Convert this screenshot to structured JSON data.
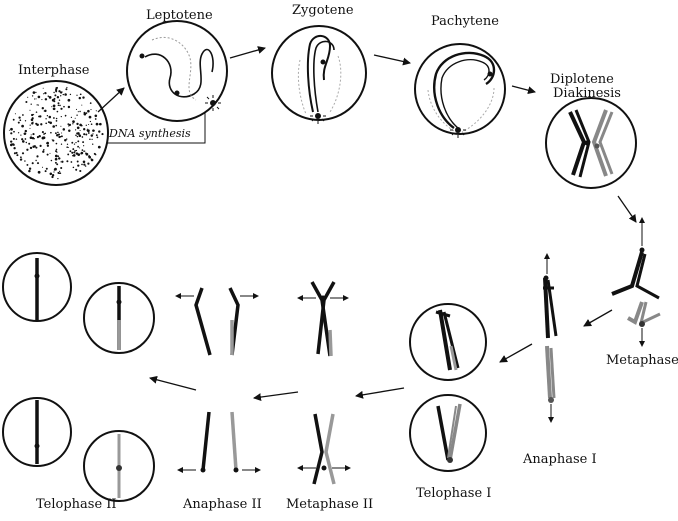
{
  "figure": {
    "stages": {
      "interphase": "Interphase",
      "leptotene": "Leptotene",
      "zygotene": "Zygotene",
      "pachytene": "Pachytene",
      "diplotene": "Diplotene",
      "diakinesis": "Diakinesis",
      "metaphase1": "Metaphase I",
      "anaphase1": "Anaphase I",
      "telophase1": "Telophase I",
      "metaphase2": "Metaphase II",
      "anaphase2": "Anaphase II",
      "telophase2": "Telophase II"
    },
    "annotation": "DNA synthesis",
    "colors": {
      "ink": "#111111",
      "light_chromatid": "#8a8a8a"
    }
  }
}
